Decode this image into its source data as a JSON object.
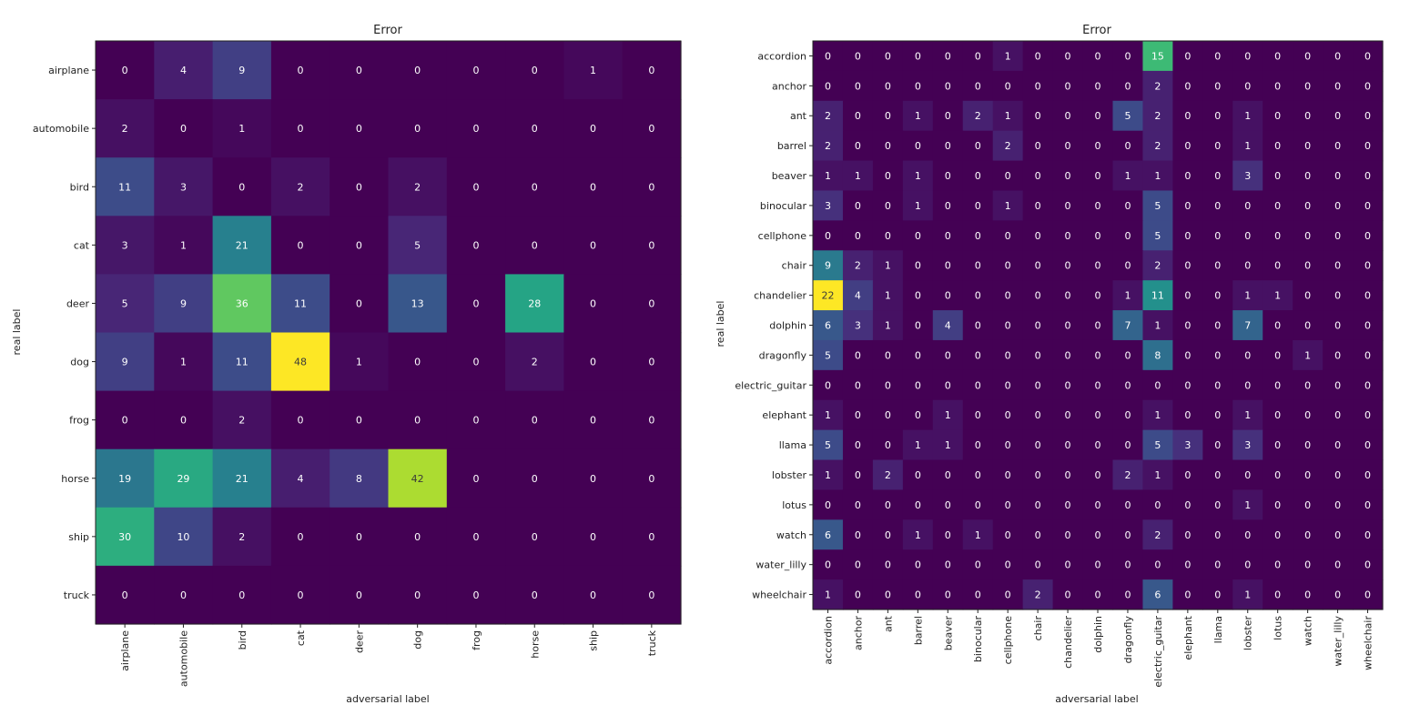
{
  "chart_data": [
    {
      "type": "heatmap",
      "title": "Error",
      "xlabel": "adversarial label",
      "ylabel": "real label",
      "colormap": "viridis",
      "row_labels": [
        "airplane",
        "automobile",
        "bird",
        "cat",
        "deer",
        "dog",
        "frog",
        "horse",
        "ship",
        "truck"
      ],
      "col_labels": [
        "airplane",
        "automobile",
        "bird",
        "cat",
        "deer",
        "dog",
        "frog",
        "horse",
        "ship",
        "truck"
      ],
      "values": [
        [
          0,
          4,
          9,
          0,
          0,
          0,
          0,
          0,
          1,
          0
        ],
        [
          2,
          0,
          1,
          0,
          0,
          0,
          0,
          0,
          0,
          0
        ],
        [
          11,
          3,
          0,
          2,
          0,
          2,
          0,
          0,
          0,
          0
        ],
        [
          3,
          1,
          21,
          0,
          0,
          5,
          0,
          0,
          0,
          0
        ],
        [
          5,
          9,
          36,
          11,
          0,
          13,
          0,
          28,
          0,
          0
        ],
        [
          9,
          1,
          11,
          48,
          1,
          0,
          0,
          2,
          0,
          0
        ],
        [
          0,
          0,
          2,
          0,
          0,
          0,
          0,
          0,
          0,
          0
        ],
        [
          19,
          29,
          21,
          4,
          8,
          42,
          0,
          0,
          0,
          0
        ],
        [
          30,
          10,
          2,
          0,
          0,
          0,
          0,
          0,
          0,
          0
        ],
        [
          0,
          0,
          0,
          0,
          0,
          0,
          0,
          0,
          0,
          0
        ]
      ]
    },
    {
      "type": "heatmap",
      "title": "Error",
      "xlabel": "adversarial label",
      "ylabel": "real label",
      "colormap": "viridis",
      "row_labels": [
        "accordion",
        "anchor",
        "ant",
        "barrel",
        "beaver",
        "binocular",
        "cellphone",
        "chair",
        "chandelier",
        "dolphin",
        "dragonfly",
        "electric_guitar",
        "elephant",
        "llama",
        "lobster",
        "lotus",
        "watch",
        "water_lilly",
        "wheelchair"
      ],
      "col_labels": [
        "accordion",
        "anchor",
        "ant",
        "barrel",
        "beaver",
        "binocular",
        "cellphone",
        "chair",
        "chandelier",
        "dolphin",
        "dragonfly",
        "electric_guitar",
        "elephant",
        "llama",
        "lobster",
        "lotus",
        "watch",
        "water_lilly",
        "wheelchair"
      ],
      "values": [
        [
          0,
          0,
          0,
          0,
          0,
          0,
          1,
          0,
          0,
          0,
          0,
          15,
          0,
          0,
          0,
          0,
          0,
          0,
          0
        ],
        [
          0,
          0,
          0,
          0,
          0,
          0,
          0,
          0,
          0,
          0,
          0,
          2,
          0,
          0,
          0,
          0,
          0,
          0,
          0
        ],
        [
          2,
          0,
          0,
          1,
          0,
          2,
          1,
          0,
          0,
          0,
          5,
          2,
          0,
          0,
          1,
          0,
          0,
          0,
          0
        ],
        [
          2,
          0,
          0,
          0,
          0,
          0,
          2,
          0,
          0,
          0,
          0,
          2,
          0,
          0,
          1,
          0,
          0,
          0,
          0
        ],
        [
          1,
          1,
          0,
          1,
          0,
          0,
          0,
          0,
          0,
          0,
          1,
          1,
          0,
          0,
          3,
          0,
          0,
          0,
          0
        ],
        [
          3,
          0,
          0,
          1,
          0,
          0,
          1,
          0,
          0,
          0,
          0,
          5,
          0,
          0,
          0,
          0,
          0,
          0,
          0
        ],
        [
          0,
          0,
          0,
          0,
          0,
          0,
          0,
          0,
          0,
          0,
          0,
          5,
          0,
          0,
          0,
          0,
          0,
          0,
          0
        ],
        [
          9,
          2,
          1,
          0,
          0,
          0,
          0,
          0,
          0,
          0,
          0,
          2,
          0,
          0,
          0,
          0,
          0,
          0,
          0
        ],
        [
          22,
          4,
          1,
          0,
          0,
          0,
          0,
          0,
          0,
          0,
          1,
          11,
          0,
          0,
          1,
          1,
          0,
          0,
          0
        ],
        [
          6,
          3,
          1,
          0,
          4,
          0,
          0,
          0,
          0,
          0,
          7,
          1,
          0,
          0,
          7,
          0,
          0,
          0,
          0
        ],
        [
          5,
          0,
          0,
          0,
          0,
          0,
          0,
          0,
          0,
          0,
          0,
          8,
          0,
          0,
          0,
          0,
          1,
          0,
          0
        ],
        [
          0,
          0,
          0,
          0,
          0,
          0,
          0,
          0,
          0,
          0,
          0,
          0,
          0,
          0,
          0,
          0,
          0,
          0,
          0
        ],
        [
          1,
          0,
          0,
          0,
          1,
          0,
          0,
          0,
          0,
          0,
          0,
          1,
          0,
          0,
          1,
          0,
          0,
          0,
          0
        ],
        [
          5,
          0,
          0,
          1,
          1,
          0,
          0,
          0,
          0,
          0,
          0,
          5,
          3,
          0,
          3,
          0,
          0,
          0,
          0
        ],
        [
          1,
          0,
          2,
          0,
          0,
          0,
          0,
          0,
          0,
          0,
          2,
          1,
          0,
          0,
          0,
          0,
          0,
          0,
          0
        ],
        [
          0,
          0,
          0,
          0,
          0,
          0,
          0,
          0,
          0,
          0,
          0,
          0,
          0,
          0,
          1,
          0,
          0,
          0,
          0
        ],
        [
          6,
          0,
          0,
          1,
          0,
          1,
          0,
          0,
          0,
          0,
          0,
          2,
          0,
          0,
          0,
          0,
          0,
          0,
          0
        ],
        [
          0,
          0,
          0,
          0,
          0,
          0,
          0,
          0,
          0,
          0,
          0,
          0,
          0,
          0,
          0,
          0,
          0,
          0,
          0
        ],
        [
          1,
          0,
          0,
          0,
          0,
          0,
          0,
          2,
          0,
          0,
          0,
          6,
          0,
          0,
          1,
          0,
          0,
          0,
          0
        ]
      ]
    }
  ]
}
